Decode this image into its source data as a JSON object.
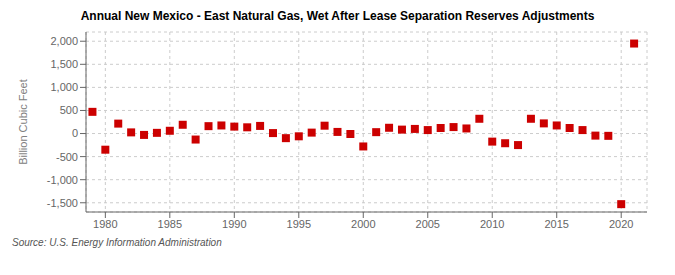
{
  "chart_data": {
    "type": "scatter",
    "title": "Annual New Mexico - East Natural Gas, Wet After Lease Separation Reserves Adjustments",
    "ylabel": "Billion Cubic Feet",
    "source": "Source: U.S. Energy Information Administration",
    "x": [
      1979,
      1980,
      1981,
      1982,
      1983,
      1984,
      1985,
      1986,
      1987,
      1988,
      1989,
      1990,
      1991,
      1992,
      1993,
      1994,
      1995,
      1996,
      1997,
      1998,
      1999,
      2000,
      2001,
      2002,
      2003,
      2004,
      2005,
      2006,
      2007,
      2008,
      2009,
      2010,
      2011,
      2012,
      2013,
      2014,
      2015,
      2016,
      2017,
      2018,
      2019,
      2020,
      2021
    ],
    "values": [
      470,
      -350,
      215,
      25,
      -30,
      15,
      60,
      190,
      -130,
      160,
      175,
      150,
      135,
      165,
      10,
      -100,
      -60,
      20,
      170,
      35,
      -10,
      -280,
      30,
      125,
      85,
      100,
      75,
      120,
      140,
      110,
      320,
      -175,
      -210,
      -250,
      320,
      220,
      175,
      120,
      75,
      -45,
      -50,
      -1530,
      1950
    ],
    "color": "#cc0000",
    "marker": "square",
    "xlim": [
      1978.5,
      2022
    ],
    "xticks": [
      1980,
      1985,
      1990,
      1995,
      2000,
      2005,
      2010,
      2015,
      2020
    ],
    "ylim": [
      -1700,
      2200
    ],
    "yticks": [
      {
        "value": -1500,
        "label": "-1,500"
      },
      {
        "value": -1000,
        "label": "-1,000"
      },
      -500,
      0,
      500,
      {
        "value": 1000,
        "label": "1,000"
      },
      {
        "value": 1500,
        "label": "1,500"
      },
      {
        "value": 2000,
        "label": "2,000"
      }
    ],
    "grid": true
  }
}
